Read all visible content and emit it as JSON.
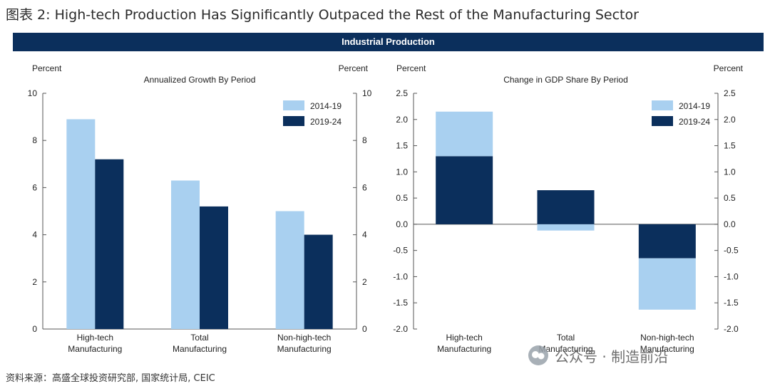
{
  "figure_title": "图表 2: High-tech Production Has Significantly Outpaced the Rest of the Manufacturing Sector",
  "banner": "Industrial Production",
  "source": "资料来源：高盛全球投资研究部, 国家统计局, CEIC",
  "watermark": "公众号 · 制造前沿",
  "colors": {
    "s1": "#a9d0f0",
    "s2": "#0b2f5c",
    "banner": "#0b2f5c"
  },
  "chart_data": [
    {
      "type": "bar",
      "title": "Annualized Growth By Period",
      "ylabel_left": "Percent",
      "ylabel_right": "Percent",
      "categories": [
        [
          "High-tech",
          "Manufacturing"
        ],
        [
          "Total",
          "Manufacturing"
        ],
        [
          "Non-high-tech",
          "Manufacturing"
        ]
      ],
      "series": [
        {
          "name": "2014-19",
          "values": [
            8.9,
            6.3,
            5.0
          ]
        },
        {
          "name": "2019-24",
          "values": [
            7.2,
            5.2,
            4.0
          ]
        }
      ],
      "ylim": [
        0,
        10
      ],
      "yticks": [
        "0",
        "2",
        "4",
        "6",
        "8",
        "10"
      ],
      "legend": "top-right",
      "grid": false
    },
    {
      "type": "bar",
      "stacked": true,
      "title": "Change in GDP Share By Period",
      "ylabel_left": "Percent",
      "ylabel_right": "Percent",
      "categories": [
        [
          "High-tech",
          "Manufacturing"
        ],
        [
          "Total",
          "Manufacturing"
        ],
        [
          "Non-high-tech",
          "Manufacturing"
        ]
      ],
      "series": [
        {
          "name": "2014-19",
          "values": [
            0.85,
            -0.12,
            -0.98
          ]
        },
        {
          "name": "2019-24",
          "values": [
            1.3,
            0.65,
            -0.65
          ]
        }
      ],
      "ylim": [
        -2.0,
        2.5
      ],
      "yticks": [
        "-2.0",
        "-1.5",
        "-1.0",
        "-0.5",
        "0.0",
        "0.5",
        "1.0",
        "1.5",
        "2.0",
        "2.5"
      ],
      "legend": "top-right",
      "grid": false
    }
  ]
}
